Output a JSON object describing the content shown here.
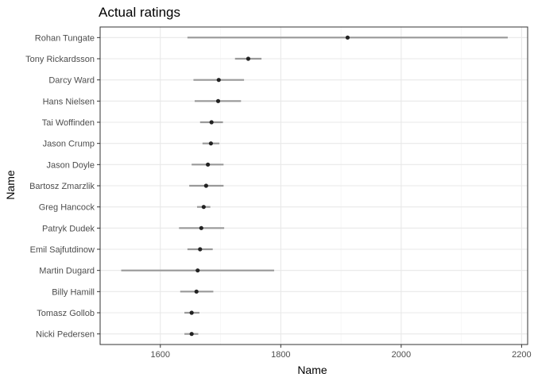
{
  "chart_data": {
    "type": "scatter",
    "title": "Actual ratings",
    "xlabel": "Name",
    "ylabel": "Name",
    "xlim": [
      1500,
      2210
    ],
    "x_ticks": [
      1600,
      1800,
      2000,
      2200
    ],
    "grid": true,
    "series": [
      {
        "points": [
          {
            "name": "Rohan Tungate",
            "value": 1911,
            "low": 1645,
            "high": 2177
          },
          {
            "name": "Tony Rickardsson",
            "value": 1746,
            "low": 1724,
            "high": 1768
          },
          {
            "name": "Darcy Ward",
            "value": 1697,
            "low": 1655,
            "high": 1739
          },
          {
            "name": "Hans Nielsen",
            "value": 1696,
            "low": 1657,
            "high": 1734
          },
          {
            "name": "Tai Woffinden",
            "value": 1685,
            "low": 1666,
            "high": 1704
          },
          {
            "name": "Jason Crump",
            "value": 1684,
            "low": 1670,
            "high": 1698
          },
          {
            "name": "Jason Doyle",
            "value": 1679,
            "low": 1652,
            "high": 1705
          },
          {
            "name": "Bartosz Zmarzlik",
            "value": 1676,
            "low": 1648,
            "high": 1705
          },
          {
            "name": "Greg Hancock",
            "value": 1672,
            "low": 1661,
            "high": 1683
          },
          {
            "name": "Patryk Dudek",
            "value": 1668,
            "low": 1631,
            "high": 1706
          },
          {
            "name": "Emil Sajfutdinow",
            "value": 1666,
            "low": 1645,
            "high": 1687
          },
          {
            "name": "Martin Dugard",
            "value": 1662,
            "low": 1535,
            "high": 1789
          },
          {
            "name": "Billy Hamill",
            "value": 1660,
            "low": 1633,
            "high": 1688
          },
          {
            "name": "Tomasz Gollob",
            "value": 1652,
            "low": 1640,
            "high": 1665
          },
          {
            "name": "Nicki Pedersen",
            "value": 1652,
            "low": 1640,
            "high": 1663
          }
        ]
      }
    ],
    "colors": {
      "point": "#222222",
      "errorbar": "#999999",
      "grid_major": "#e8e8e8",
      "grid_minor": "#f3f3f3",
      "panel_border": "#333333",
      "text": "#4d4d4d"
    }
  }
}
